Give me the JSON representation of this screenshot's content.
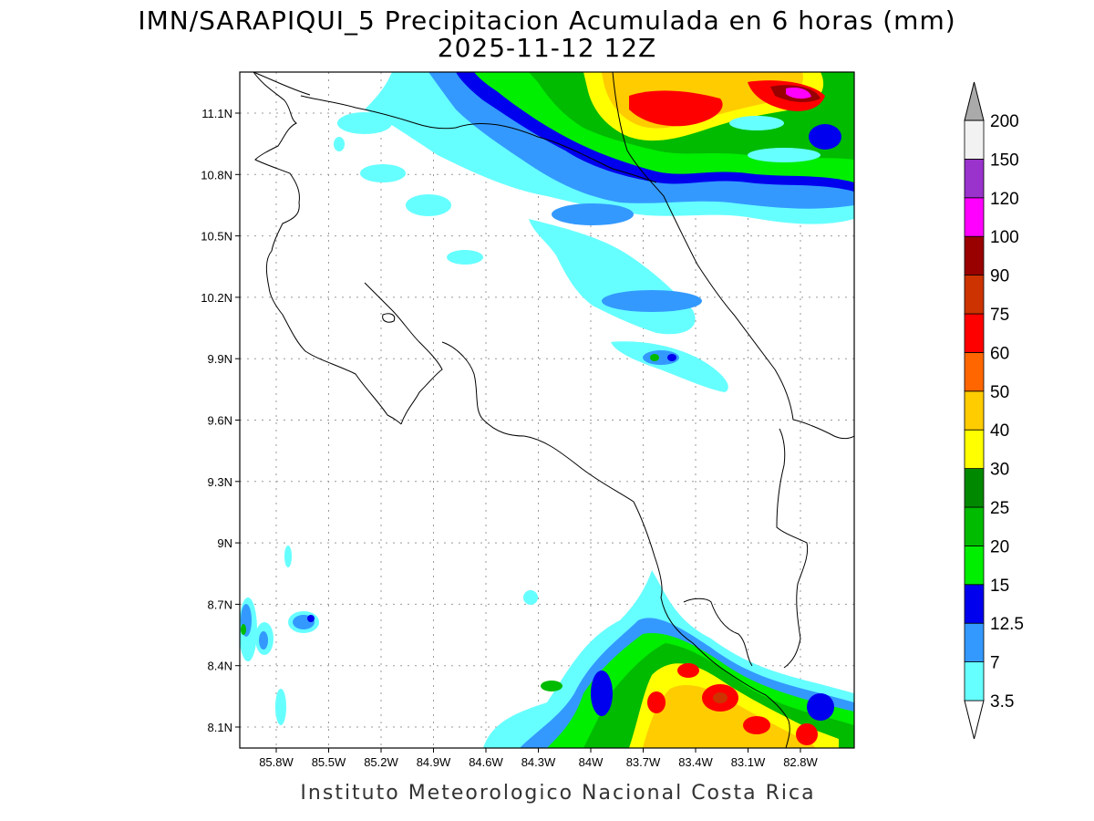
{
  "title": {
    "line1": "IMN/SARAPIQUI_5 Precipitacion Acumulada en 6 horas (mm)",
    "line2": "2025-11-12 12Z"
  },
  "footer": "Instituto Meteorologico Nacional Costa Rica",
  "map": {
    "lat_ticks": [
      "11.1N",
      "10.8N",
      "10.5N",
      "10.2N",
      "9.9N",
      "9.6N",
      "9.3N",
      "9N",
      "8.7N",
      "8.4N",
      "8.1N"
    ],
    "lon_ticks": [
      "85.8W",
      "85.5W",
      "85.2W",
      "84.9W",
      "84.6W",
      "84.3W",
      "84W",
      "83.7W",
      "83.4W",
      "83.1W",
      "82.8W"
    ]
  },
  "legend": {
    "levels": [
      "3.5",
      "7",
      "12.5",
      "15",
      "20",
      "25",
      "30",
      "40",
      "50",
      "60",
      "75",
      "90",
      "100",
      "120",
      "150",
      "200"
    ],
    "colors": [
      "#66ffff",
      "#3399ff",
      "#0000ee",
      "#00ee00",
      "#00bb00",
      "#008800",
      "#ffff00",
      "#ffcc00",
      "#ff6600",
      "#ff0000",
      "#cc3300",
      "#990000",
      "#ff00ff",
      "#9933cc",
      "#f2f2f2",
      "#aaaaaa"
    ]
  }
}
